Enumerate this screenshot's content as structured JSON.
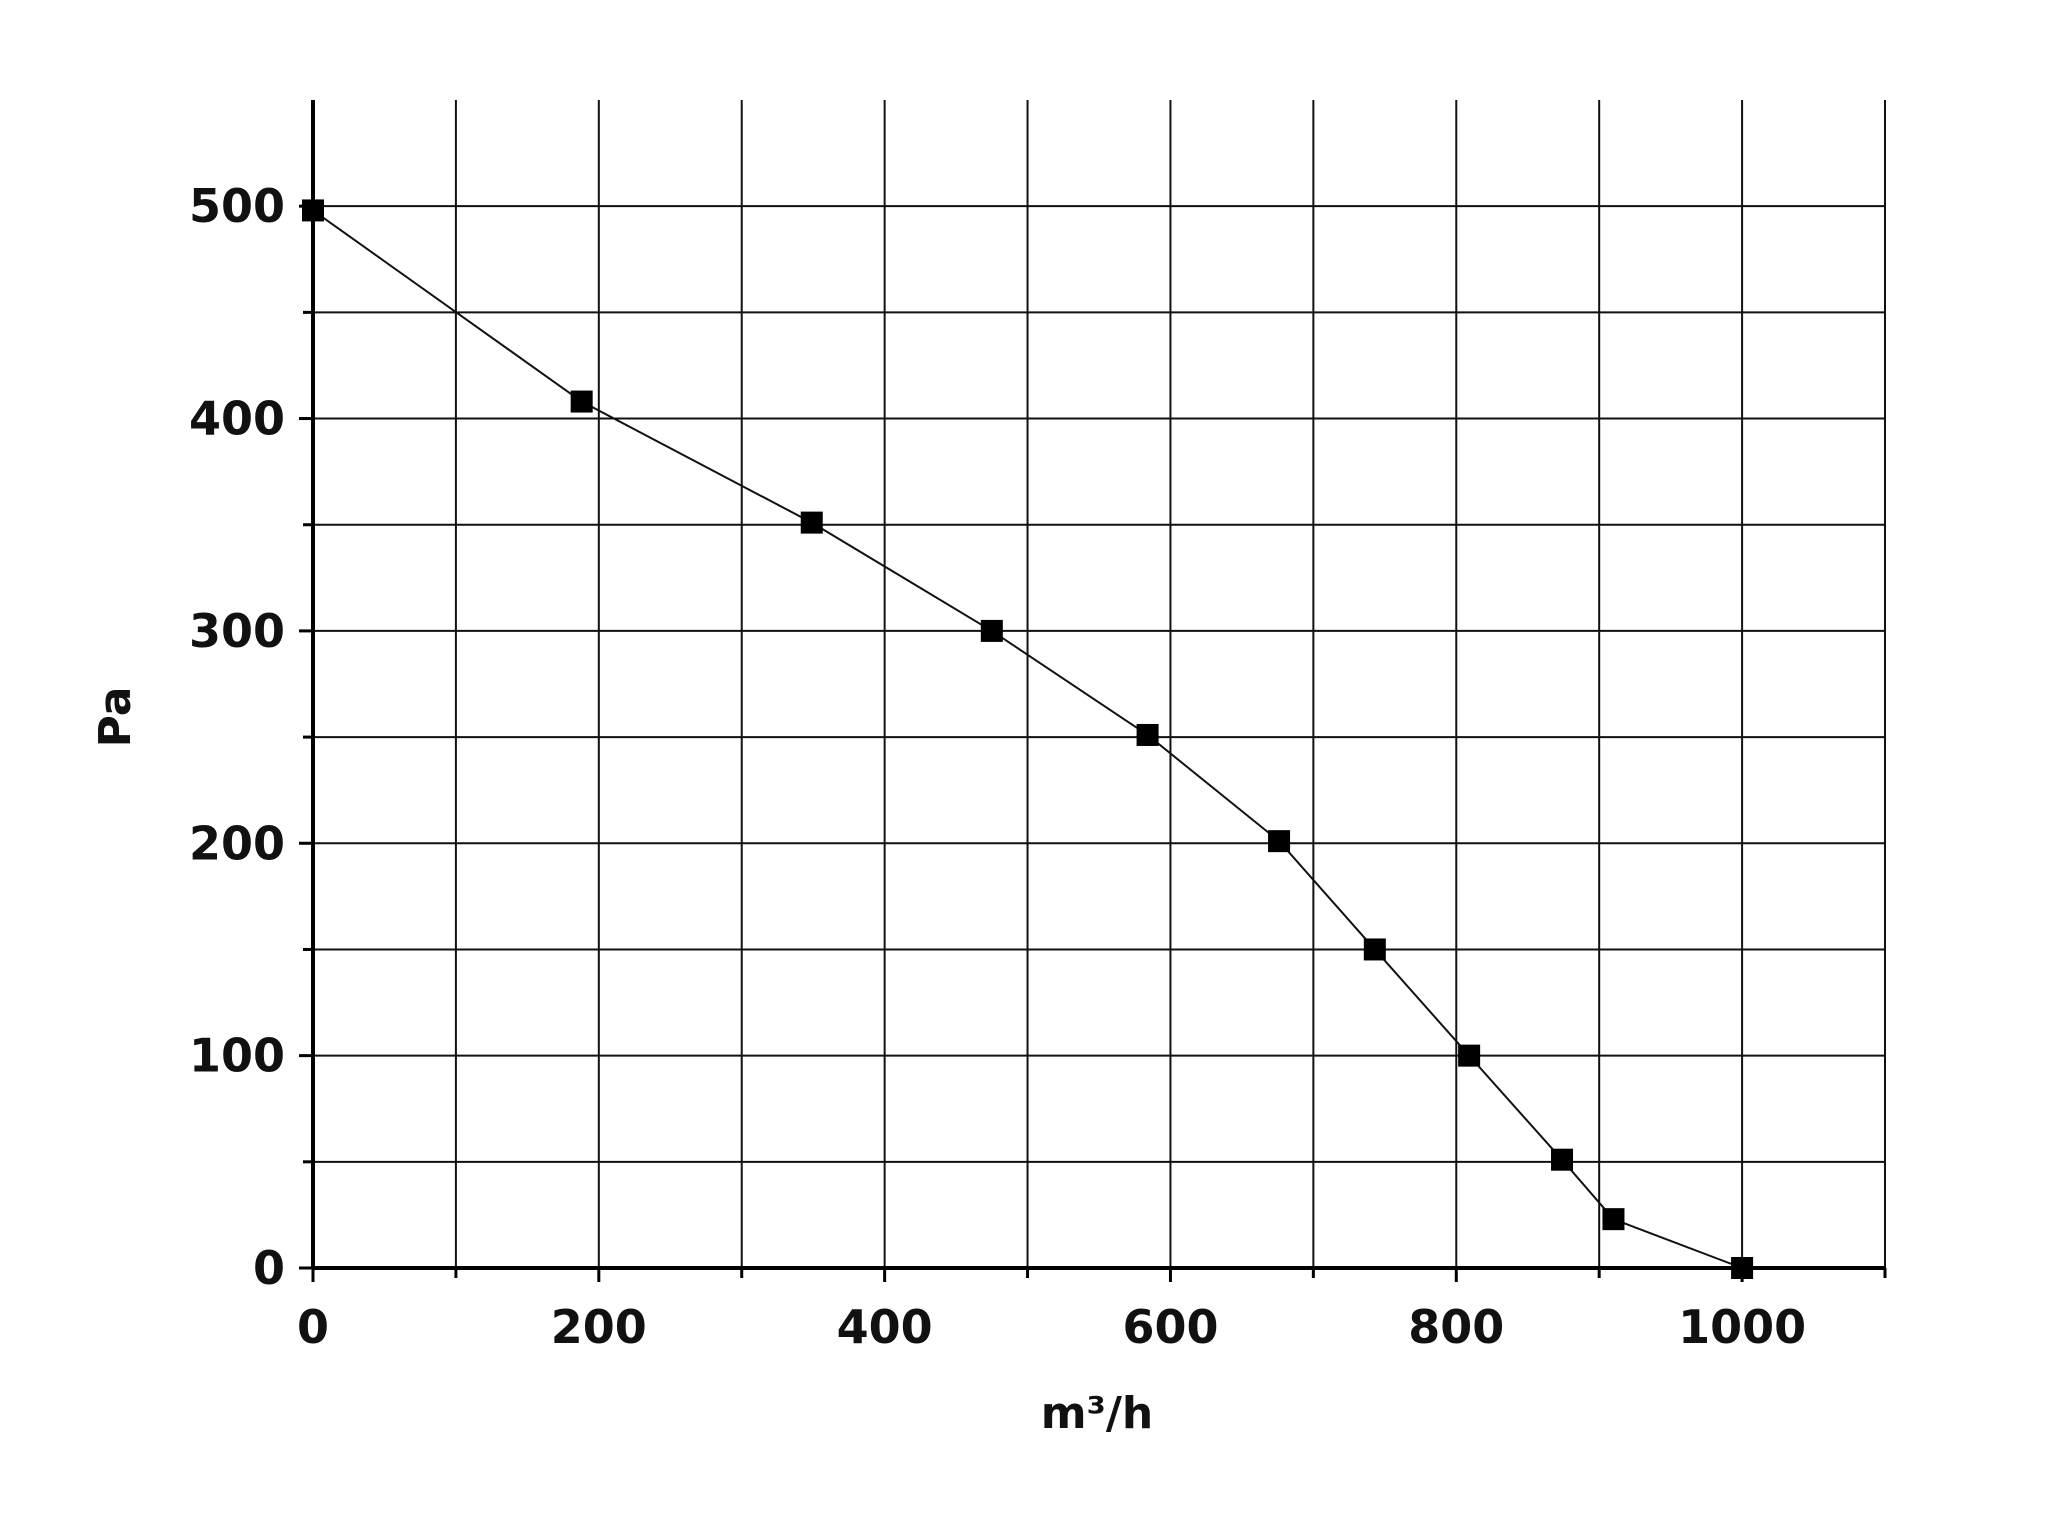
{
  "chart_data": {
    "type": "line",
    "title": "",
    "xlabel": "m³/h",
    "ylabel": "Pa",
    "xlim": [
      0,
      1100
    ],
    "ylim": [
      0,
      550
    ],
    "x_ticks": [
      0,
      200,
      400,
      600,
      800,
      1000
    ],
    "y_ticks": [
      0,
      100,
      200,
      300,
      400,
      500
    ],
    "x_minor_step": 100,
    "y_minor_step": 50,
    "grid": true,
    "legend": "none",
    "marker": "square",
    "colors": {
      "line": "#111111",
      "marker": "#000000",
      "grid": "#111111"
    },
    "series": [
      {
        "x": [
          0,
          188,
          349,
          475,
          584,
          676,
          743,
          809,
          874,
          910,
          1000
        ],
        "y": [
          498,
          408,
          351,
          300,
          251,
          201,
          150,
          100,
          51,
          23,
          0
        ]
      }
    ]
  }
}
